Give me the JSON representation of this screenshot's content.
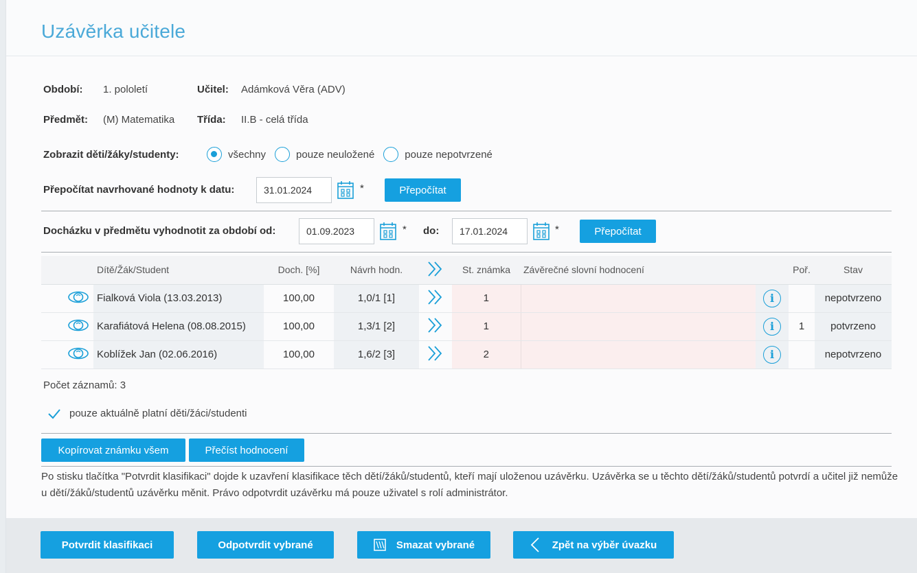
{
  "page": {
    "title": "Uzávěrka učitele"
  },
  "info": {
    "obdobi_label": "Období:",
    "obdobi_value": "1. pololetí",
    "ucitel_label": "Učitel:",
    "ucitel_value": "Adámková Věra (ADV)",
    "predmet_label": "Předmět:",
    "predmet_value": "(M) Matematika",
    "trida_label": "Třída:",
    "trida_value": "II.B - celá třída"
  },
  "filter": {
    "label": "Zobrazit děti/žáky/studenty:",
    "options": [
      {
        "label": "všechny",
        "selected": true
      },
      {
        "label": "pouze neuložené",
        "selected": false
      },
      {
        "label": "pouze nepotvrzené",
        "selected": false
      }
    ]
  },
  "recalc": {
    "label": "Přepočítat navrhované hodnoty k datu:",
    "date": "31.01.2024",
    "star": "*",
    "button": "Přepočítat"
  },
  "attendance": {
    "label": "Docházku v předmětu vyhodnotit za období od:",
    "from": "01.09.2023",
    "star_from": "*",
    "to_label": "do:",
    "to": "17.01.2024",
    "star_to": "*",
    "button": "Přepočítat"
  },
  "table": {
    "headers": {
      "student": "Dítě/Žák/Student",
      "doch": "Doch. [%]",
      "navrh": "Návrh hodn.",
      "znamka": "St. známka",
      "slovni": "Závěrečné slovní hodnocení",
      "por": "Poř.",
      "stav": "Stav"
    },
    "rows": [
      {
        "name": "Fialková Viola (13.03.2013)",
        "doch": "100,00",
        "navrh": "1,0/1 [1]",
        "znamka": "1",
        "slovni": "",
        "por": "",
        "stav": "nepotvrzeno",
        "stav_color": "#2f9a26"
      },
      {
        "name": "Karafiátová Helena (08.08.2015)",
        "doch": "100,00",
        "navrh": "1,3/1 [2]",
        "znamka": "1",
        "slovni": "",
        "por": "1",
        "stav": "potvrzeno",
        "stav_color": "#e0231e"
      },
      {
        "name": "Koblížek Jan (02.06.2016)",
        "doch": "100,00",
        "navrh": "1,6/2 [3]",
        "znamka": "2",
        "slovni": "",
        "por": "",
        "stav": "nepotvrzeno",
        "stav_color": "#2f9a26"
      }
    ]
  },
  "count": "Počet záznamů: 3",
  "only_current": {
    "label": "pouze aktuálně platní děti/žáci/studenti",
    "checked": true
  },
  "actions": {
    "copy_grade": "Kopírovat známku všem",
    "reread": "Přečíst hodnocení"
  },
  "notice": "Po stisku tlačítka \"Potvrdit klasifikaci\" dojde k uzavření klasifikace těch dětí/žáků/studentů, kteří mají uloženou uzávěrku. Uzávěrka se u těchto dětí/žáků/studentů potvrdí a učitel již nemůže u dětí/žáků/studentů uzávěrku měnit. Právo odpotvrdit uzávěrku má pouze uživatel s rolí administrátor.",
  "footer": {
    "confirm": "Potvrdit klasifikaci",
    "unconfirm": "Odpotvrdit vybrané",
    "delete": "Smazat vybrané",
    "back": "Zpět na výběr úvazku"
  },
  "colors": {
    "accent": "#15a0e0",
    "title": "#4aa9d8",
    "green": "#2f9a26",
    "red": "#e0231e"
  }
}
